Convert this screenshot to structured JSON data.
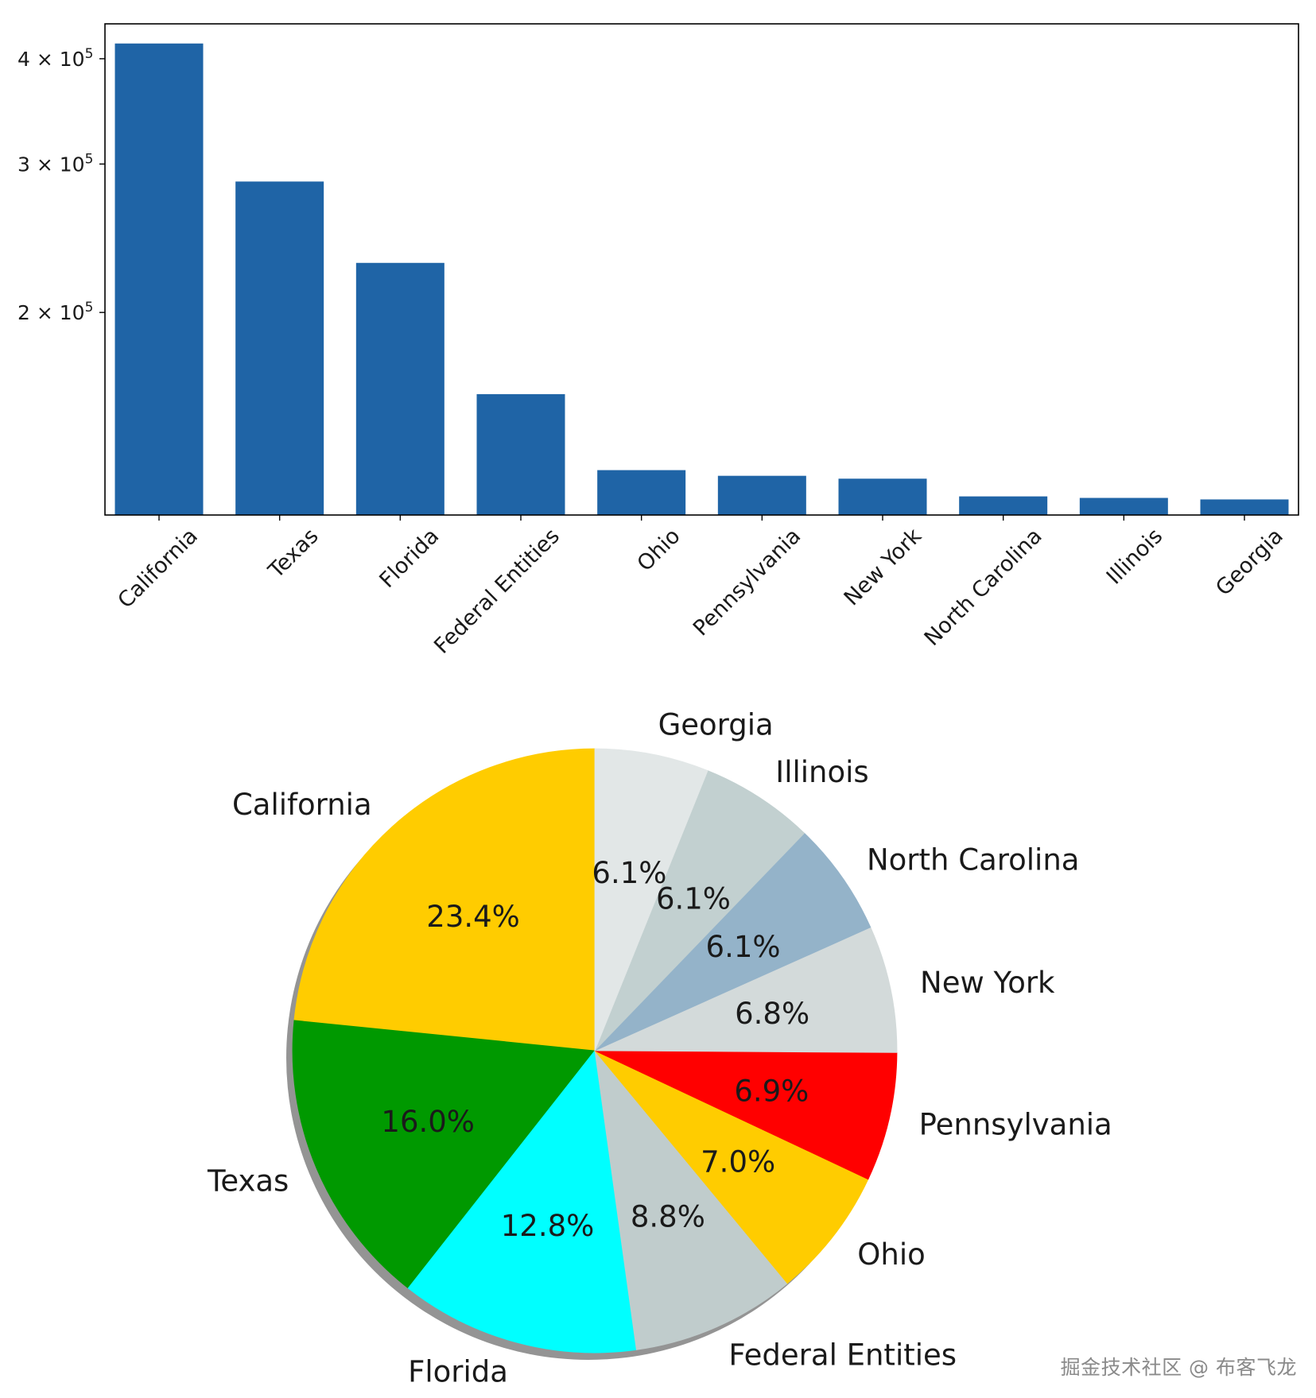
{
  "chart_data": [
    {
      "type": "bar",
      "title": "",
      "xlabel": "",
      "ylabel": "",
      "yscale": "log",
      "ylim": [
        115000,
        440000
      ],
      "bar_color": "#1f64a6",
      "categories": [
        "California",
        "Texas",
        "Florida",
        "Federal Entities",
        "Ohio",
        "Pennsylvania",
        "New York",
        "North Carolina",
        "Illinois",
        "Georgia"
      ],
      "values": [
        417000,
        286000,
        229000,
        160000,
        130000,
        128000,
        127000,
        121000,
        120500,
        120000
      ],
      "yticks": [
        {
          "value": 400000,
          "mantissa": "4",
          "base": "10",
          "exp": "5"
        },
        {
          "value": 300000,
          "mantissa": "3",
          "base": "10",
          "exp": "5"
        },
        {
          "value": 200000,
          "mantissa": "2",
          "base": "10",
          "exp": "5"
        }
      ]
    },
    {
      "type": "pie",
      "title": "",
      "start": "top, counter-clockwise",
      "slices": [
        {
          "label": "California",
          "percent": 23.4,
          "pct_label": "23.4%",
          "color": "#ffcc00"
        },
        {
          "label": "Texas",
          "percent": 16.0,
          "pct_label": "16.0%",
          "color": "#009900"
        },
        {
          "label": "Florida",
          "percent": 12.8,
          "pct_label": "12.8%",
          "color": "#00ffff"
        },
        {
          "label": "Federal Entities",
          "percent": 8.8,
          "pct_label": "8.8%",
          "color": "#c0cccc"
        },
        {
          "label": "Ohio",
          "percent": 7.0,
          "pct_label": "7.0%",
          "color": "#ffcc00"
        },
        {
          "label": "Pennsylvania",
          "percent": 6.9,
          "pct_label": "6.9%",
          "color": "#ff0000"
        },
        {
          "label": "New York",
          "percent": 6.8,
          "pct_label": "6.8%",
          "color": "#d3dada"
        },
        {
          "label": "North Carolina",
          "percent": 6.1,
          "pct_label": "6.1%",
          "color": "#94b3c9"
        },
        {
          "label": "Illinois",
          "percent": 6.1,
          "pct_label": "6.1%",
          "color": "#c2d0d0"
        },
        {
          "label": "Georgia",
          "percent": 6.1,
          "pct_label": "6.1%",
          "color": "#e2e7e7"
        }
      ]
    }
  ],
  "watermark": "掘金技术社区 @ 布客飞龙"
}
